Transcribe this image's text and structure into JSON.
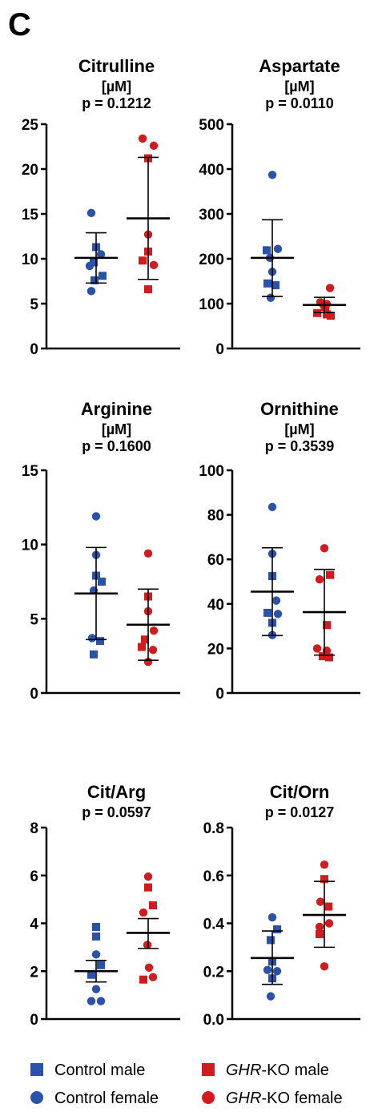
{
  "figure": {
    "panel_label": "C"
  },
  "colors": {
    "control": "#2a52a8",
    "ko": "#d01c1f",
    "axis": "#000000"
  },
  "legend": [
    {
      "marker": "square",
      "color_key": "control",
      "parts": [
        {
          "text": "Control male",
          "italic": false
        }
      ]
    },
    {
      "marker": "square",
      "color_key": "ko",
      "parts": [
        {
          "text": "GHR",
          "italic": true
        },
        {
          "text": "-KO male",
          "italic": false
        }
      ]
    },
    {
      "marker": "circle",
      "color_key": "control",
      "parts": [
        {
          "text": "Control female",
          "italic": false
        }
      ]
    },
    {
      "marker": "circle",
      "color_key": "ko",
      "parts": [
        {
          "text": "GHR",
          "italic": true
        },
        {
          "text": "-KO female",
          "italic": false
        }
      ]
    }
  ],
  "chart_data": [
    {
      "type": "scatter",
      "title": "Citrulline",
      "unit": "[µM]",
      "p_text": "p = 0.1212",
      "ylim": [
        0,
        25
      ],
      "yticks": [
        0,
        5,
        10,
        15,
        20,
        25
      ],
      "groups": [
        {
          "name": "Control",
          "color_key": "control",
          "mean": 10.1,
          "sd": [
            7.3,
            12.9
          ],
          "points": [
            {
              "y": 15.1,
              "shape": "circle",
              "dx": -0.6
            },
            {
              "y": 11.3,
              "shape": "square",
              "dx": 0.0
            },
            {
              "y": 10.5,
              "shape": "circle",
              "dx": 0.6
            },
            {
              "y": 9.6,
              "shape": "square",
              "dx": -0.3
            },
            {
              "y": 9.2,
              "shape": "circle",
              "dx": -0.8
            },
            {
              "y": 8.1,
              "shape": "square",
              "dx": 0.8
            },
            {
              "y": 7.6,
              "shape": "square",
              "dx": -0.2
            },
            {
              "y": 6.4,
              "shape": "circle",
              "dx": -0.6
            }
          ]
        },
        {
          "name": "GHR-KO",
          "color_key": "ko",
          "mean": 14.5,
          "sd": [
            7.7,
            21.3
          ],
          "points": [
            {
              "y": 23.4,
              "shape": "circle",
              "dx": -0.7
            },
            {
              "y": 22.6,
              "shape": "circle",
              "dx": 0.7
            },
            {
              "y": 21.2,
              "shape": "square",
              "dx": 0.0
            },
            {
              "y": 12.7,
              "shape": "circle",
              "dx": 0.0
            },
            {
              "y": 10.8,
              "shape": "square",
              "dx": 0.0
            },
            {
              "y": 9.8,
              "shape": "square",
              "dx": -0.7
            },
            {
              "y": 9.3,
              "shape": "circle",
              "dx": 0.7
            },
            {
              "y": 6.6,
              "shape": "square",
              "dx": 0.0
            }
          ]
        }
      ]
    },
    {
      "type": "scatter",
      "title": "Aspartate",
      "unit": "[µM]",
      "p_text": "p = 0.0110",
      "ylim": [
        0,
        500
      ],
      "yticks": [
        0,
        100,
        200,
        300,
        400,
        500
      ],
      "groups": [
        {
          "name": "Control",
          "color_key": "control",
          "mean": 202,
          "sd": [
            116,
            287
          ],
          "points": [
            {
              "y": 387,
              "shape": "circle",
              "dx": 0.0
            },
            {
              "y": 222,
              "shape": "circle",
              "dx": 0.7
            },
            {
              "y": 219,
              "shape": "square",
              "dx": -0.7
            },
            {
              "y": 202,
              "shape": "circle",
              "dx": -0.3
            },
            {
              "y": 171,
              "shape": "circle",
              "dx": 0.0
            },
            {
              "y": 145,
              "shape": "square",
              "dx": -0.6
            },
            {
              "y": 141,
              "shape": "square",
              "dx": 0.4
            },
            {
              "y": 113,
              "shape": "circle",
              "dx": -0.2
            }
          ]
        },
        {
          "name": "GHR-KO",
          "color_key": "ko",
          "mean": 97,
          "sd": [
            80,
            114
          ],
          "points": [
            {
              "y": 135,
              "shape": "circle",
              "dx": 0.7
            },
            {
              "y": 103,
              "shape": "circle",
              "dx": -0.5
            },
            {
              "y": 99,
              "shape": "circle",
              "dx": 0.3
            },
            {
              "y": 96,
              "shape": "circle",
              "dx": -0.1
            },
            {
              "y": 92,
              "shape": "square",
              "dx": 0.1
            },
            {
              "y": 79,
              "shape": "square",
              "dx": -0.9
            },
            {
              "y": 76,
              "shape": "square",
              "dx": 0.3
            },
            {
              "y": 73,
              "shape": "square",
              "dx": 0.8
            }
          ]
        }
      ]
    },
    {
      "type": "scatter",
      "title": "Arginine",
      "unit": "[µM]",
      "p_text": "p = 0.1600",
      "ylim": [
        0,
        15
      ],
      "yticks": [
        0,
        5,
        10,
        15
      ],
      "groups": [
        {
          "name": "Control",
          "color_key": "control",
          "mean": 6.7,
          "sd": [
            3.6,
            9.8
          ],
          "points": [
            {
              "y": 11.9,
              "shape": "circle",
              "dx": 0.0
            },
            {
              "y": 9.3,
              "shape": "circle",
              "dx": 0.0
            },
            {
              "y": 7.9,
              "shape": "square",
              "dx": 0.0
            },
            {
              "y": 7.5,
              "shape": "square",
              "dx": 0.7
            },
            {
              "y": 6.9,
              "shape": "circle",
              "dx": -0.3
            },
            {
              "y": 3.7,
              "shape": "circle",
              "dx": -0.5
            },
            {
              "y": 3.5,
              "shape": "square",
              "dx": 0.5
            },
            {
              "y": 2.6,
              "shape": "square",
              "dx": -0.3
            }
          ]
        },
        {
          "name": "GHR-KO",
          "color_key": "ko",
          "mean": 4.6,
          "sd": [
            2.2,
            7.0
          ],
          "points": [
            {
              "y": 9.4,
              "shape": "circle",
              "dx": 0.0
            },
            {
              "y": 6.5,
              "shape": "square",
              "dx": 0.0
            },
            {
              "y": 5.5,
              "shape": "circle",
              "dx": 0.0
            },
            {
              "y": 4.2,
              "shape": "circle",
              "dx": 0.7
            },
            {
              "y": 3.6,
              "shape": "square",
              "dx": -0.4
            },
            {
              "y": 3.1,
              "shape": "square",
              "dx": -0.8
            },
            {
              "y": 2.9,
              "shape": "circle",
              "dx": 0.6
            },
            {
              "y": 2.1,
              "shape": "circle",
              "dx": 0.0
            }
          ]
        }
      ]
    },
    {
      "type": "scatter",
      "title": "Ornithine",
      "unit": "[µM]",
      "p_text": "p = 0.3539",
      "ylim": [
        0,
        100
      ],
      "yticks": [
        0,
        20,
        40,
        60,
        80,
        100
      ],
      "groups": [
        {
          "name": "Control",
          "color_key": "control",
          "mean": 45.5,
          "sd": [
            25.8,
            65.2
          ],
          "points": [
            {
              "y": 83.5,
              "shape": "circle",
              "dx": 0.0
            },
            {
              "y": 62.5,
              "shape": "circle",
              "dx": 0.0
            },
            {
              "y": 52.5,
              "shape": "square",
              "dx": 0.0
            },
            {
              "y": 41.5,
              "shape": "circle",
              "dx": 0.5
            },
            {
              "y": 36.0,
              "shape": "square",
              "dx": -0.6
            },
            {
              "y": 35.5,
              "shape": "circle",
              "dx": 0.7
            },
            {
              "y": 31.5,
              "shape": "square",
              "dx": 0.0
            },
            {
              "y": 26.0,
              "shape": "circle",
              "dx": 0.0
            }
          ]
        },
        {
          "name": "GHR-KO",
          "color_key": "ko",
          "mean": 36.3,
          "sd": [
            17.0,
            55.5
          ],
          "points": [
            {
              "y": 65.0,
              "shape": "circle",
              "dx": 0.0
            },
            {
              "y": 53.0,
              "shape": "square",
              "dx": 0.7
            },
            {
              "y": 51.0,
              "shape": "circle",
              "dx": -0.6
            },
            {
              "y": 30.5,
              "shape": "square",
              "dx": 0.3
            },
            {
              "y": 20.0,
              "shape": "circle",
              "dx": -0.9
            },
            {
              "y": 19.0,
              "shape": "circle",
              "dx": 0.3
            },
            {
              "y": 16.5,
              "shape": "square",
              "dx": -0.2
            },
            {
              "y": 16.0,
              "shape": "square",
              "dx": 0.6
            }
          ]
        }
      ]
    },
    {
      "type": "scatter",
      "title": "Cit/Arg",
      "unit": "",
      "p_text": "p = 0.0597",
      "ylim": [
        0,
        8
      ],
      "yticks": [
        0,
        2,
        4,
        6,
        8
      ],
      "groups": [
        {
          "name": "Control",
          "color_key": "control",
          "mean": 2.0,
          "sd": [
            1.55,
            2.45
          ],
          "points": [
            {
              "y": 3.85,
              "shape": "square",
              "dx": 0.0
            },
            {
              "y": 3.45,
              "shape": "square",
              "dx": 0.0
            },
            {
              "y": 2.7,
              "shape": "circle",
              "dx": 0.0
            },
            {
              "y": 2.25,
              "shape": "square",
              "dx": 0.6
            },
            {
              "y": 1.85,
              "shape": "square",
              "dx": -0.6
            },
            {
              "y": 1.25,
              "shape": "circle",
              "dx": 0.0
            },
            {
              "y": 0.75,
              "shape": "circle",
              "dx": -0.6
            },
            {
              "y": 0.75,
              "shape": "circle",
              "dx": 0.6
            }
          ]
        },
        {
          "name": "GHR-KO",
          "color_key": "ko",
          "mean": 3.6,
          "sd": [
            2.95,
            4.2
          ],
          "points": [
            {
              "y": 5.95,
              "shape": "circle",
              "dx": 0.0
            },
            {
              "y": 5.5,
              "shape": "square",
              "dx": 0.0
            },
            {
              "y": 4.75,
              "shape": "square",
              "dx": 0.6
            },
            {
              "y": 4.45,
              "shape": "circle",
              "dx": -0.6
            },
            {
              "y": 3.1,
              "shape": "circle",
              "dx": -0.1
            },
            {
              "y": 2.15,
              "shape": "circle",
              "dx": 0.1
            },
            {
              "y": 1.75,
              "shape": "circle",
              "dx": 0.6
            },
            {
              "y": 1.65,
              "shape": "square",
              "dx": -0.6
            }
          ]
        }
      ]
    },
    {
      "type": "scatter",
      "title": "Cit/Orn",
      "unit": "",
      "p_text": "p = 0.0127",
      "ylim": [
        0,
        0.8
      ],
      "yticks": [
        0.0,
        0.2,
        0.4,
        0.6,
        0.8
      ],
      "tick_decimals": 1,
      "groups": [
        {
          "name": "Control",
          "color_key": "control",
          "mean": 0.255,
          "sd": [
            0.145,
            0.368
          ],
          "points": [
            {
              "y": 0.425,
              "shape": "circle",
              "dx": 0.0
            },
            {
              "y": 0.375,
              "shape": "square",
              "dx": 0.6
            },
            {
              "y": 0.33,
              "shape": "square",
              "dx": -0.2
            },
            {
              "y": 0.24,
              "shape": "square",
              "dx": 0.0
            },
            {
              "y": 0.205,
              "shape": "circle",
              "dx": -0.6
            },
            {
              "y": 0.2,
              "shape": "circle",
              "dx": 0.6
            },
            {
              "y": 0.17,
              "shape": "square",
              "dx": 0.0
            },
            {
              "y": 0.095,
              "shape": "circle",
              "dx": -0.2
            }
          ]
        },
        {
          "name": "GHR-KO",
          "color_key": "ko",
          "mean": 0.435,
          "sd": [
            0.3,
            0.575
          ],
          "points": [
            {
              "y": 0.645,
              "shape": "circle",
              "dx": 0.0
            },
            {
              "y": 0.585,
              "shape": "square",
              "dx": 0.0
            },
            {
              "y": 0.49,
              "shape": "circle",
              "dx": -0.5
            },
            {
              "y": 0.47,
              "shape": "square",
              "dx": 0.5
            },
            {
              "y": 0.4,
              "shape": "circle",
              "dx": 0.6
            },
            {
              "y": 0.385,
              "shape": "circle",
              "dx": -0.6
            },
            {
              "y": 0.355,
              "shape": "square",
              "dx": -0.6
            },
            {
              "y": 0.22,
              "shape": "circle",
              "dx": 0.0
            }
          ]
        }
      ]
    }
  ]
}
